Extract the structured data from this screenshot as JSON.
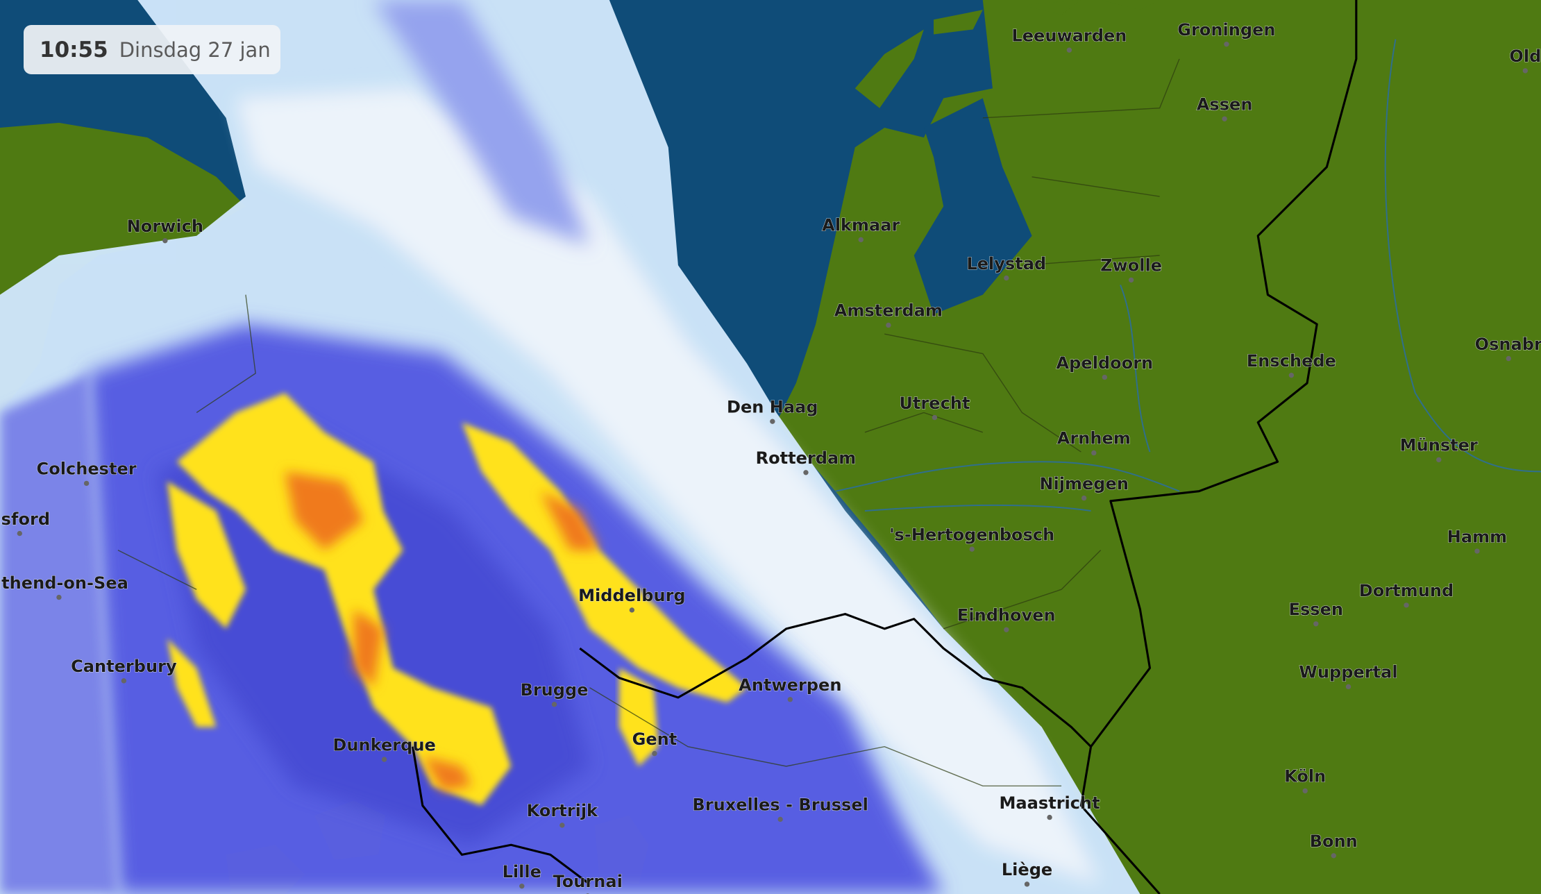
{
  "timestamp": {
    "time": "10:55",
    "date": "Dinsdag 27 jan"
  },
  "colors": {
    "sea": "#0f4c78",
    "land": "#4f7a12",
    "radar_light": "#cfe6fb",
    "radar_medium": "#5a5ee6",
    "radar_heavy": "#ffe21a",
    "radar_intense": "#f07a1e"
  },
  "cities": [
    {
      "name": "Leeuwarden"
    },
    {
      "name": "Groningen"
    },
    {
      "name": "Assen"
    },
    {
      "name": "Old"
    },
    {
      "name": "Norwich"
    },
    {
      "name": "Alkmaar"
    },
    {
      "name": "Lelystad"
    },
    {
      "name": "Zwolle"
    },
    {
      "name": "Amsterdam"
    },
    {
      "name": "Apeldoorn"
    },
    {
      "name": "Enschede"
    },
    {
      "name": "Osnabr"
    },
    {
      "name": "Den Haag"
    },
    {
      "name": "Utrecht"
    },
    {
      "name": "Arnhem"
    },
    {
      "name": "Münster"
    },
    {
      "name": "Rotterdam"
    },
    {
      "name": "Colchester"
    },
    {
      "name": "Nijmegen"
    },
    {
      "name": "nsford"
    },
    {
      "name": "'s-Hertogenbosch"
    },
    {
      "name": "Hamm"
    },
    {
      "name": "uthend-on-Sea"
    },
    {
      "name": "Middelburg"
    },
    {
      "name": "Dortmund"
    },
    {
      "name": "Essen"
    },
    {
      "name": "Eindhoven"
    },
    {
      "name": "Canterbury"
    },
    {
      "name": "Wuppertal"
    },
    {
      "name": "Brugge"
    },
    {
      "name": "Antwerpen"
    },
    {
      "name": "Gent"
    },
    {
      "name": "Dunkerque"
    },
    {
      "name": "Köln"
    },
    {
      "name": "Kortrijk"
    },
    {
      "name": "Bruxelles - Brussel"
    },
    {
      "name": "Maastricht"
    },
    {
      "name": "Bonn"
    },
    {
      "name": "Lille"
    },
    {
      "name": "Tournai"
    },
    {
      "name": "Liège"
    }
  ]
}
